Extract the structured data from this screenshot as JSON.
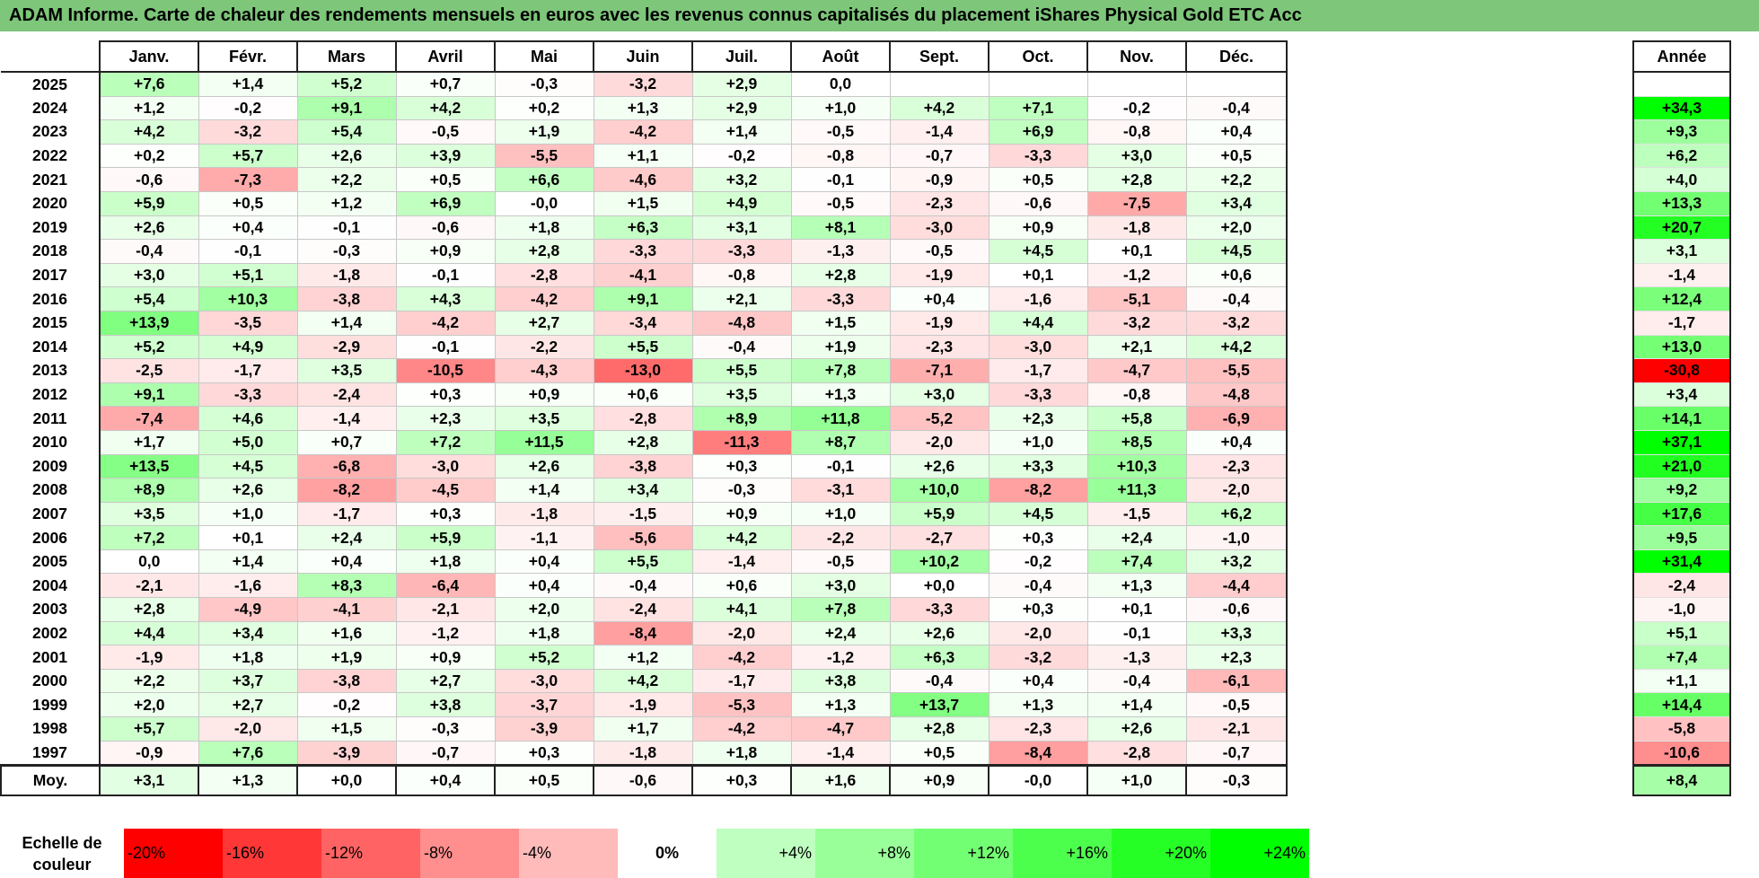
{
  "title": "ADAM Informe. Carte de chaleur des rendements mensuels en euros avec les revenus connus capitalisés du placement iShares Physical Gold ETC Acc",
  "chart_data": {
    "type": "heatmap",
    "title": "ADAM Informe. Carte de chaleur des rendements mensuels en euros avec les revenus connus capitalisés du placement iShares Physical Gold ETC Acc",
    "columns": [
      "Janv.",
      "Févr.",
      "Mars",
      "Avril",
      "Mai",
      "Juin",
      "Juil.",
      "Août",
      "Sept.",
      "Oct.",
      "Nov.",
      "Déc."
    ],
    "year_header": "Année",
    "rows": [
      {
        "year": "2025",
        "values": [
          "+7,6",
          "+1,4",
          "+5,2",
          "+0,7",
          "-0,3",
          "-3,2",
          "+2,9",
          "0,0",
          "",
          "",
          "",
          ""
        ],
        "annual": ""
      },
      {
        "year": "2024",
        "values": [
          "+1,2",
          "-0,2",
          "+9,1",
          "+4,2",
          "+0,2",
          "+1,3",
          "+2,9",
          "+1,0",
          "+4,2",
          "+7,1",
          "-0,2",
          "-0,4"
        ],
        "annual": "+34,3"
      },
      {
        "year": "2023",
        "values": [
          "+4,2",
          "-3,2",
          "+5,4",
          "-0,5",
          "+1,9",
          "-4,2",
          "+1,4",
          "-0,5",
          "-1,4",
          "+6,9",
          "-0,8",
          "+0,4"
        ],
        "annual": "+9,3"
      },
      {
        "year": "2022",
        "values": [
          "+0,2",
          "+5,7",
          "+2,6",
          "+3,9",
          "-5,5",
          "+1,1",
          "-0,2",
          "-0,8",
          "-0,7",
          "-3,3",
          "+3,0",
          "+0,5"
        ],
        "annual": "+6,2"
      },
      {
        "year": "2021",
        "values": [
          "-0,6",
          "-7,3",
          "+2,2",
          "+0,5",
          "+6,6",
          "-4,6",
          "+3,2",
          "-0,1",
          "-0,9",
          "+0,5",
          "+2,8",
          "+2,2"
        ],
        "annual": "+4,0"
      },
      {
        "year": "2020",
        "values": [
          "+5,9",
          "+0,5",
          "+1,2",
          "+6,9",
          "-0,0",
          "+1,5",
          "+4,9",
          "-0,5",
          "-2,3",
          "-0,6",
          "-7,5",
          "+3,4"
        ],
        "annual": "+13,3"
      },
      {
        "year": "2019",
        "values": [
          "+2,6",
          "+0,4",
          "-0,1",
          "-0,6",
          "+1,8",
          "+6,3",
          "+3,1",
          "+8,1",
          "-3,0",
          "+0,9",
          "-1,8",
          "+2,0"
        ],
        "annual": "+20,7"
      },
      {
        "year": "2018",
        "values": [
          "-0,4",
          "-0,1",
          "-0,3",
          "+0,9",
          "+2,8",
          "-3,3",
          "-3,3",
          "-1,3",
          "-0,5",
          "+4,5",
          "+0,1",
          "+4,5"
        ],
        "annual": "+3,1"
      },
      {
        "year": "2017",
        "values": [
          "+3,0",
          "+5,1",
          "-1,8",
          "-0,1",
          "-2,8",
          "-4,1",
          "-0,8",
          "+2,8",
          "-1,9",
          "+0,1",
          "-1,2",
          "+0,6"
        ],
        "annual": "-1,4"
      },
      {
        "year": "2016",
        "values": [
          "+5,4",
          "+10,3",
          "-3,8",
          "+4,3",
          "-4,2",
          "+9,1",
          "+2,1",
          "-3,3",
          "+0,4",
          "-1,6",
          "-5,1",
          "-0,4"
        ],
        "annual": "+12,4"
      },
      {
        "year": "2015",
        "values": [
          "+13,9",
          "-3,5",
          "+1,4",
          "-4,2",
          "+2,7",
          "-3,4",
          "-4,8",
          "+1,5",
          "-1,9",
          "+4,4",
          "-3,2",
          "-3,2"
        ],
        "annual": "-1,7"
      },
      {
        "year": "2014",
        "values": [
          "+5,2",
          "+4,9",
          "-2,9",
          "-0,1",
          "-2,2",
          "+5,5",
          "-0,4",
          "+1,9",
          "-2,3",
          "-3,0",
          "+2,1",
          "+4,2"
        ],
        "annual": "+13,0"
      },
      {
        "year": "2013",
        "values": [
          "-2,5",
          "-1,7",
          "+3,5",
          "-10,5",
          "-4,3",
          "-13,0",
          "+5,5",
          "+7,8",
          "-7,1",
          "-1,7",
          "-4,7",
          "-5,5"
        ],
        "annual": "-30,8"
      },
      {
        "year": "2012",
        "values": [
          "+9,1",
          "-3,3",
          "-2,4",
          "+0,3",
          "+0,9",
          "+0,6",
          "+3,5",
          "+1,3",
          "+3,0",
          "-3,3",
          "-0,8",
          "-4,8"
        ],
        "annual": "+3,4"
      },
      {
        "year": "2011",
        "values": [
          "-7,4",
          "+4,6",
          "-1,4",
          "+2,3",
          "+3,5",
          "-2,8",
          "+8,9",
          "+11,8",
          "-5,2",
          "+2,3",
          "+5,8",
          "-6,9"
        ],
        "annual": "+14,1"
      },
      {
        "year": "2010",
        "values": [
          "+1,7",
          "+5,0",
          "+0,7",
          "+7,2",
          "+11,5",
          "+2,8",
          "-11,3",
          "+8,7",
          "-2,0",
          "+1,0",
          "+8,5",
          "+0,4"
        ],
        "annual": "+37,1"
      },
      {
        "year": "2009",
        "values": [
          "+13,5",
          "+4,5",
          "-6,8",
          "-3,0",
          "+2,6",
          "-3,8",
          "+0,3",
          "-0,1",
          "+2,6",
          "+3,3",
          "+10,3",
          "-2,3"
        ],
        "annual": "+21,0"
      },
      {
        "year": "2008",
        "values": [
          "+8,9",
          "+2,6",
          "-8,2",
          "-4,5",
          "+1,4",
          "+3,4",
          "-0,3",
          "-3,1",
          "+10,0",
          "-8,2",
          "+11,3",
          "-2,0"
        ],
        "annual": "+9,2"
      },
      {
        "year": "2007",
        "values": [
          "+3,5",
          "+1,0",
          "-1,7",
          "+0,3",
          "-1,8",
          "-1,5",
          "+0,9",
          "+1,0",
          "+5,9",
          "+4,5",
          "-1,5",
          "+6,2"
        ],
        "annual": "+17,6"
      },
      {
        "year": "2006",
        "values": [
          "+7,2",
          "+0,1",
          "+2,4",
          "+5,9",
          "-1,1",
          "-5,6",
          "+4,2",
          "-2,2",
          "-2,7",
          "+0,3",
          "+2,4",
          "-1,0"
        ],
        "annual": "+9,5"
      },
      {
        "year": "2005",
        "values": [
          "0,0",
          "+1,4",
          "+0,4",
          "+1,8",
          "+0,4",
          "+5,5",
          "-1,4",
          "-0,5",
          "+10,2",
          "-0,2",
          "+7,4",
          "+3,2"
        ],
        "annual": "+31,4"
      },
      {
        "year": "2004",
        "values": [
          "-2,1",
          "-1,6",
          "+8,3",
          "-6,4",
          "+0,4",
          "-0,4",
          "+0,6",
          "+3,0",
          "+0,0",
          "-0,4",
          "+1,3",
          "-4,4"
        ],
        "annual": "-2,4"
      },
      {
        "year": "2003",
        "values": [
          "+2,8",
          "-4,9",
          "-4,1",
          "-2,1",
          "+2,0",
          "-2,4",
          "+4,1",
          "+7,8",
          "-3,3",
          "+0,3",
          "+0,1",
          "-0,6"
        ],
        "annual": "-1,0"
      },
      {
        "year": "2002",
        "values": [
          "+4,4",
          "+3,4",
          "+1,6",
          "-1,2",
          "+1,8",
          "-8,4",
          "-2,0",
          "+2,4",
          "+2,6",
          "-2,0",
          "-0,1",
          "+3,3"
        ],
        "annual": "+5,1"
      },
      {
        "year": "2001",
        "values": [
          "-1,9",
          "+1,8",
          "+1,9",
          "+0,9",
          "+5,2",
          "+1,2",
          "-4,2",
          "-1,2",
          "+6,3",
          "-3,2",
          "-1,3",
          "+2,3"
        ],
        "annual": "+7,4"
      },
      {
        "year": "2000",
        "values": [
          "+2,2",
          "+3,7",
          "-3,8",
          "+2,7",
          "-3,0",
          "+4,2",
          "-1,7",
          "+3,8",
          "-0,4",
          "+0,4",
          "-0,4",
          "-6,1"
        ],
        "annual": "+1,1"
      },
      {
        "year": "1999",
        "values": [
          "+2,0",
          "+2,7",
          "-0,2",
          "+3,8",
          "-3,7",
          "-1,9",
          "-5,3",
          "+1,3",
          "+13,7",
          "+1,3",
          "+1,4",
          "-0,5"
        ],
        "annual": "+14,4"
      },
      {
        "year": "1998",
        "values": [
          "+5,7",
          "-2,0",
          "+1,5",
          "-0,3",
          "-3,9",
          "+1,7",
          "-4,2",
          "-4,7",
          "+2,8",
          "-2,3",
          "+2,6",
          "-2,1"
        ],
        "annual": "-5,8"
      },
      {
        "year": "1997",
        "values": [
          "-0,9",
          "+7,6",
          "-3,9",
          "-0,7",
          "+0,3",
          "-1,8",
          "+1,8",
          "-1,4",
          "+0,5",
          "-8,4",
          "-2,8",
          "-0,7"
        ],
        "annual": "-10,6"
      }
    ],
    "average": {
      "label": "Moy.",
      "values": [
        "+3,1",
        "+1,3",
        "+0,0",
        "+0,4",
        "+0,5",
        "-0,6",
        "+0,3",
        "+1,6",
        "+0,9",
        "-0,0",
        "+1,0",
        "-0,3"
      ],
      "annual": "+8,4"
    },
    "scale": {
      "label": "Echelle de couleur",
      "steps": [
        "-20%",
        "-16%",
        "-12%",
        "-8%",
        "-4%",
        "0%",
        "+4%",
        "+8%",
        "+12%",
        "+16%",
        "+20%",
        "+24%"
      ],
      "step_values": [
        -20,
        -16,
        -12,
        -8,
        -4,
        0,
        4,
        8,
        12,
        16,
        20,
        24
      ]
    },
    "colors": {
      "negative": "#ff0000",
      "neutral": "#ffffff",
      "positive": "#00ff00",
      "title_bg": "#7dc67a"
    }
  }
}
